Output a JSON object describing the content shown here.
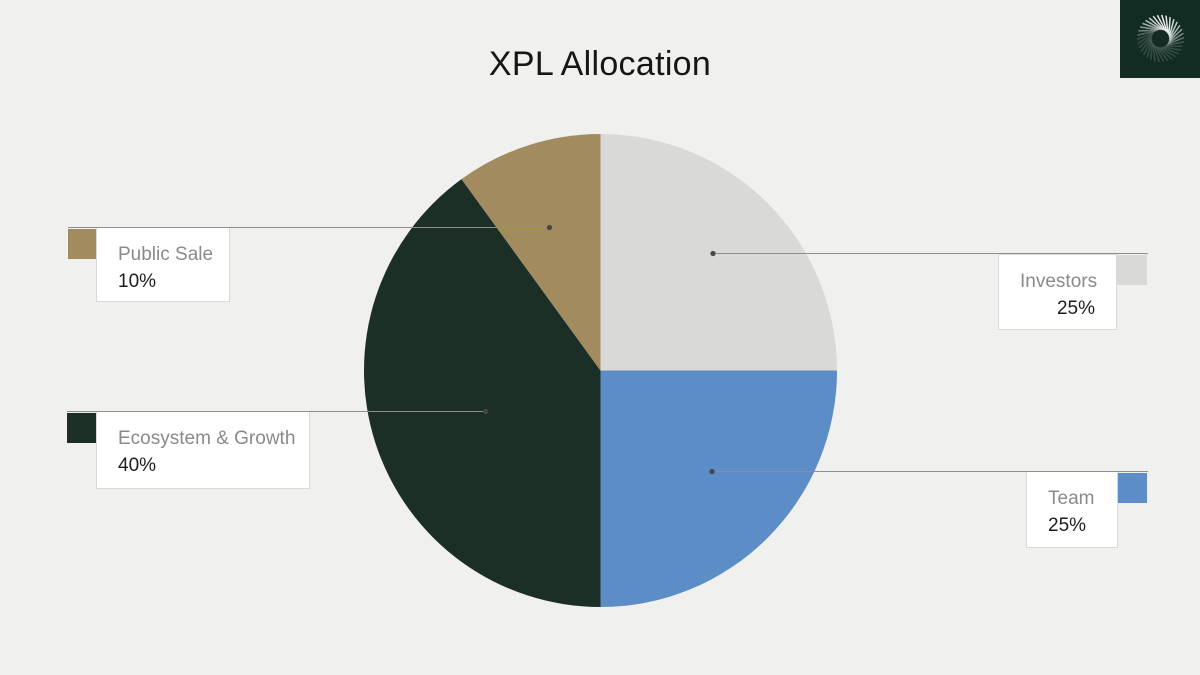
{
  "page": {
    "background": "#f0f0ee"
  },
  "brand": {
    "logo_icon": "spiral-vortex-logo",
    "background": "#122c24",
    "stroke_color": "#ffffff"
  },
  "chart_data": {
    "type": "pie",
    "title": "XPL Allocation",
    "unit": "percent",
    "start_angle_deg": 0,
    "direction": "clockwise",
    "legend_position": "callout-boxes",
    "slices": [
      {
        "id": "investors",
        "label": "Investors",
        "value": 25,
        "display": "25%",
        "color": "#d9d9d8"
      },
      {
        "id": "team",
        "label": "Team",
        "value": 25,
        "display": "25%",
        "color": "#5c8dc6"
      },
      {
        "id": "ecosystem-growth",
        "label": "Ecosystem & Growth",
        "value": 40,
        "display": "40%",
        "color": "#1c2f27"
      },
      {
        "id": "public-sale",
        "label": "Public Sale",
        "value": 10,
        "display": "10%",
        "color": "#a28b5f"
      }
    ]
  }
}
